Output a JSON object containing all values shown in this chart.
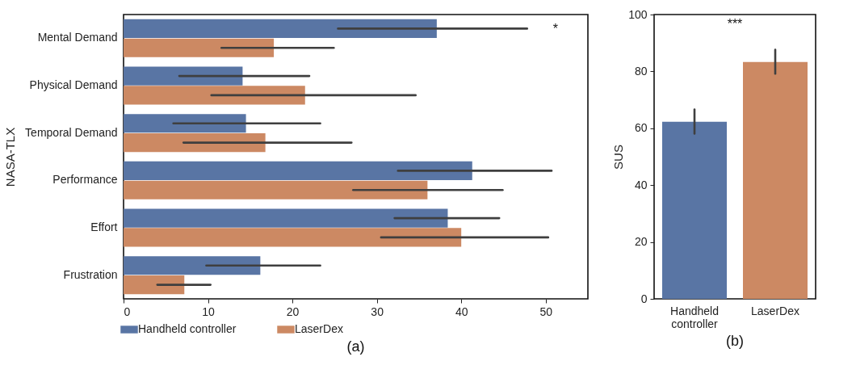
{
  "chart_data": [
    {
      "type": "bar",
      "orientation": "horizontal",
      "ylabel": "NASA-TLX",
      "categories": [
        "Mental Demand",
        "Physical Demand",
        "Temporal Demand",
        "Performance",
        "Effort",
        "Frustration"
      ],
      "series": [
        {
          "name": "Handheld controller",
          "color": "#5975a4",
          "values": [
            37.1,
            14.1,
            14.5,
            41.3,
            38.4,
            16.2
          ],
          "errors": [
            [
              25.4,
              47.8
            ],
            [
              6.6,
              22.0
            ],
            [
              5.9,
              23.3
            ],
            [
              32.5,
              50.7
            ],
            [
              32.1,
              44.5
            ],
            [
              9.8,
              23.3
            ]
          ]
        },
        {
          "name": "LaserDex",
          "color": "#cc8963",
          "values": [
            17.8,
            21.5,
            16.8,
            36.0,
            40.0,
            7.2
          ],
          "errors": [
            [
              11.6,
              24.9
            ],
            [
              10.4,
              34.6
            ],
            [
              7.1,
              27.0
            ],
            [
              27.2,
              44.9
            ],
            [
              30.5,
              50.3
            ],
            [
              4.0,
              10.3
            ]
          ]
        }
      ],
      "xlim": [
        0,
        55
      ],
      "xticks": [
        0,
        10,
        20,
        30,
        40,
        50
      ],
      "grid": false,
      "legend": "bottom",
      "annotations": [
        "*",
        "(a)"
      ]
    },
    {
      "type": "bar",
      "ylabel": "SUS",
      "categories": [
        "Handheld controller",
        "LaserDex"
      ],
      "values": [
        62.3,
        83.3
      ],
      "colors": [
        "#5975a4",
        "#cc8963"
      ],
      "errors": [
        [
          58.1,
          66.6
        ],
        [
          79.2,
          87.6
        ]
      ],
      "ylim": [
        0,
        100
      ],
      "yticks": [
        0,
        20,
        40,
        60,
        80,
        100
      ],
      "grid": false,
      "annotations": [
        "***",
        "(b)"
      ]
    }
  ]
}
